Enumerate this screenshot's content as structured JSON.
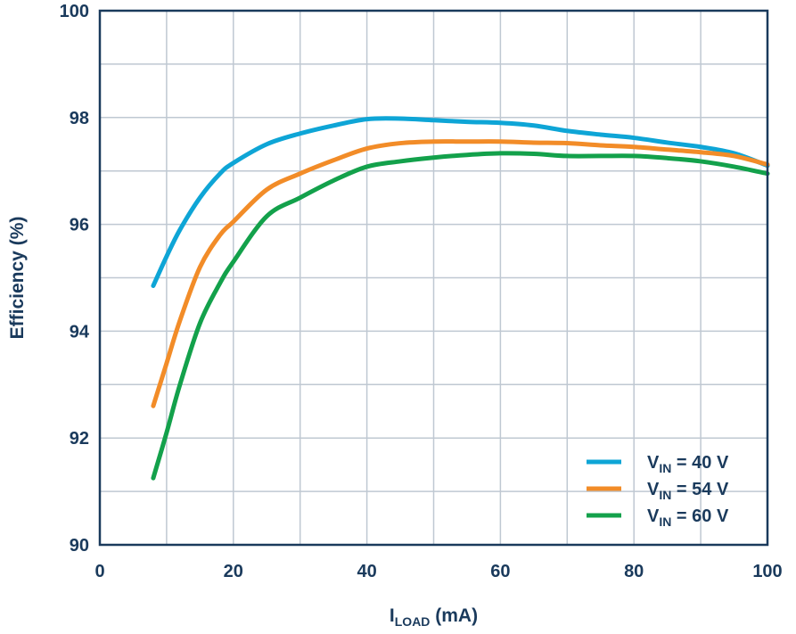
{
  "chart_data": {
    "type": "line",
    "xlabel": {
      "main": "I",
      "sub": "LOAD",
      "unit": " (mA)"
    },
    "ylabel": "Efficiency (%)",
    "xlim": [
      0,
      100
    ],
    "ylim": [
      90,
      100
    ],
    "x_ticks": [
      0,
      20,
      40,
      60,
      80,
      100
    ],
    "y_ticks": [
      90,
      92,
      94,
      96,
      98,
      100
    ],
    "x_tick_labels": [
      "0",
      "20",
      "40",
      "60",
      "80",
      "100"
    ],
    "y_tick_labels": [
      "90",
      "92",
      "94",
      "96",
      "98",
      "100"
    ],
    "grid": true,
    "legend_position": "bottom-right",
    "series": [
      {
        "name": "VIN = 40 V",
        "legend": {
          "main": "V",
          "sub": "IN",
          "rest": " = 40 V"
        },
        "color": "#0ea5d6",
        "points": [
          [
            8,
            94.85
          ],
          [
            10,
            95.4
          ],
          [
            12,
            95.9
          ],
          [
            15,
            96.5
          ],
          [
            18,
            96.95
          ],
          [
            20,
            97.15
          ],
          [
            25,
            97.5
          ],
          [
            30,
            97.7
          ],
          [
            35,
            97.85
          ],
          [
            40,
            97.97
          ],
          [
            45,
            97.98
          ],
          [
            50,
            97.95
          ],
          [
            55,
            97.92
          ],
          [
            60,
            97.9
          ],
          [
            65,
            97.85
          ],
          [
            70,
            97.75
          ],
          [
            75,
            97.68
          ],
          [
            80,
            97.62
          ],
          [
            85,
            97.53
          ],
          [
            90,
            97.45
          ],
          [
            95,
            97.33
          ],
          [
            100,
            97.1
          ]
        ]
      },
      {
        "name": "VIN = 54 V",
        "legend": {
          "main": "V",
          "sub": "IN",
          "rest": " = 54 V"
        },
        "color": "#f28c28",
        "points": [
          [
            8,
            92.6
          ],
          [
            10,
            93.4
          ],
          [
            12,
            94.2
          ],
          [
            15,
            95.2
          ],
          [
            18,
            95.8
          ],
          [
            20,
            96.05
          ],
          [
            25,
            96.65
          ],
          [
            30,
            96.95
          ],
          [
            35,
            97.2
          ],
          [
            40,
            97.42
          ],
          [
            45,
            97.52
          ],
          [
            50,
            97.55
          ],
          [
            55,
            97.55
          ],
          [
            60,
            97.55
          ],
          [
            65,
            97.53
          ],
          [
            70,
            97.52
          ],
          [
            75,
            97.48
          ],
          [
            80,
            97.45
          ],
          [
            85,
            97.4
          ],
          [
            90,
            97.35
          ],
          [
            95,
            97.28
          ],
          [
            100,
            97.12
          ]
        ]
      },
      {
        "name": "VIN = 60 V",
        "legend": {
          "main": "V",
          "sub": "IN",
          "rest": " = 60 V"
        },
        "color": "#13a14b",
        "points": [
          [
            8,
            91.25
          ],
          [
            10,
            92.1
          ],
          [
            12,
            93.0
          ],
          [
            15,
            94.15
          ],
          [
            18,
            94.9
          ],
          [
            20,
            95.3
          ],
          [
            25,
            96.15
          ],
          [
            30,
            96.5
          ],
          [
            35,
            96.82
          ],
          [
            40,
            97.08
          ],
          [
            45,
            97.18
          ],
          [
            50,
            97.25
          ],
          [
            55,
            97.3
          ],
          [
            60,
            97.33
          ],
          [
            65,
            97.32
          ],
          [
            70,
            97.28
          ],
          [
            75,
            97.28
          ],
          [
            80,
            97.28
          ],
          [
            85,
            97.24
          ],
          [
            90,
            97.18
          ],
          [
            95,
            97.08
          ],
          [
            100,
            96.95
          ]
        ]
      }
    ]
  }
}
